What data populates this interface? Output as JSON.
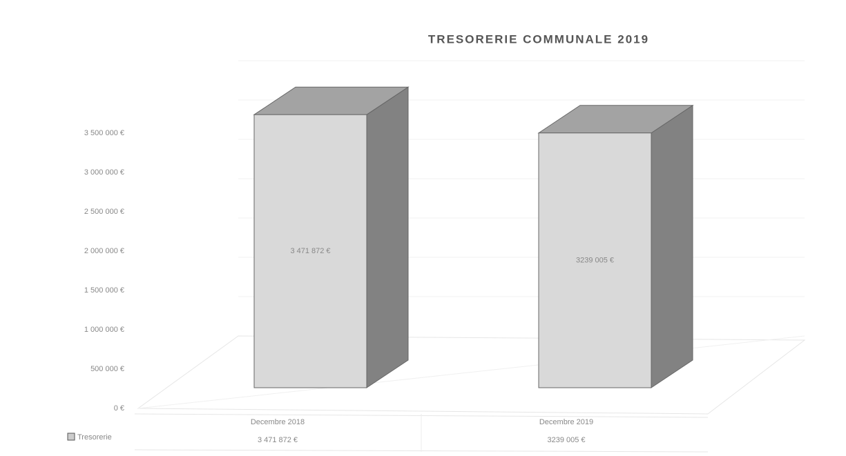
{
  "chart_data": {
    "type": "bar3d",
    "title": "TRESORERIE COMMUNALE 2019",
    "categories": [
      "Decembre 2018",
      "Decembre 2019"
    ],
    "series": [
      {
        "name": "Tresorerie",
        "color": "#d9d9d9",
        "values": [
          3471872,
          3239005
        ],
        "value_labels": [
          "3 471 872 €",
          "3239 005 €"
        ]
      }
    ],
    "ylim": [
      0,
      3500000
    ],
    "yticks": [
      {
        "value": 0,
        "label": "0 €"
      },
      {
        "value": 500000,
        "label": "500 000 €"
      },
      {
        "value": 1000000,
        "label": "1 000 000 €"
      },
      {
        "value": 1500000,
        "label": "1 500 000 €"
      },
      {
        "value": 2000000,
        "label": "2 000 000 €"
      },
      {
        "value": 2500000,
        "label": "2 500 000 €"
      },
      {
        "value": 3000000,
        "label": "3 000 000 €"
      },
      {
        "value": 3500000,
        "label": "3 500 000 €"
      }
    ],
    "grid": true,
    "data_table": true
  }
}
